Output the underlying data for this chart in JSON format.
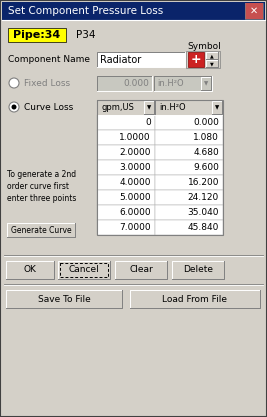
{
  "title": "Set Component Pressure Loss",
  "bg_color": "#d4d0c8",
  "title_bg": "#0a246a",
  "title_fg": "#ffffff",
  "pipe_label": "Pipe:34",
  "pipe_label_bg": "#ffff00",
  "pipe_name": "P34",
  "component_name_label": "Component Name",
  "component_name_value": "Radiator",
  "symbol_label": "Symbol",
  "fixed_loss_label": "Fixed Loss",
  "fixed_loss_value": "0.000",
  "fixed_loss_unit": "in.H²O",
  "curve_loss_label": "Curve Loss",
  "col1_header": "gpm,US",
  "col2_header": "in.H²O",
  "table_data": [
    [
      "0",
      "0.000"
    ],
    [
      "1.0000",
      "1.080"
    ],
    [
      "2.0000",
      "4.680"
    ],
    [
      "3.0000",
      "9.600"
    ],
    [
      "4.0000",
      "16.200"
    ],
    [
      "5.0000",
      "24.120"
    ],
    [
      "6.0000",
      "35.040"
    ],
    [
      "7.0000",
      "45.840"
    ]
  ],
  "note_text": "To generate a 2nd\norder curve first\nenter three points",
  "generate_btn": "Generate Curve",
  "btn_ok": "OK",
  "btn_cancel": "Cancel",
  "btn_clear": "Clear",
  "btn_delete": "Delete",
  "btn_save": "Save To File",
  "btn_load": "Load From File"
}
